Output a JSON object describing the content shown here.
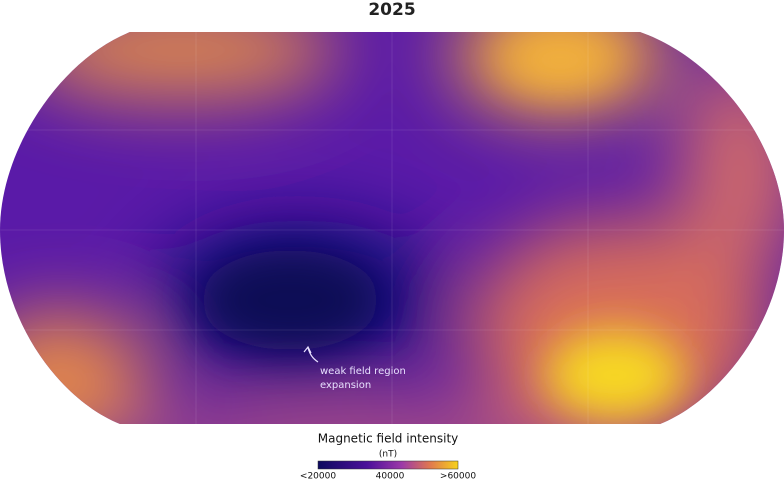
{
  "title": "2025",
  "annotation": {
    "lines": [
      "weak field region",
      "expansion"
    ]
  },
  "legend": {
    "title": "Magnetic field intensity",
    "unit": "(nT)",
    "ticks": [
      "<20000",
      "40000",
      ">60000"
    ]
  }
}
